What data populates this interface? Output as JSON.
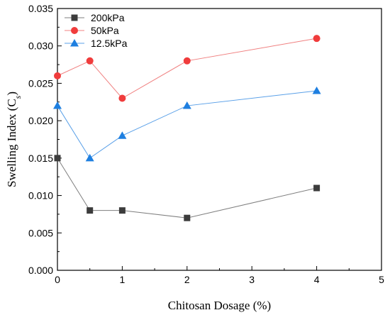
{
  "chart_data": {
    "type": "line",
    "title": "",
    "xlabel": "Chitosan Dosage (%)",
    "ylabel": "Swelling Index (C",
    "ylabel_subscript": "s",
    "ylabel_suffix": ")",
    "xlim": [
      0,
      5
    ],
    "ylim": [
      0,
      0.035
    ],
    "xticks": [
      "0",
      "1",
      "2",
      "3",
      "4",
      "5"
    ],
    "yticks": [
      "0.000",
      "0.005",
      "0.010",
      "0.015",
      "0.020",
      "0.025",
      "0.030",
      "0.035"
    ],
    "grid": false,
    "legend_position": "top-left",
    "x": [
      0,
      0.5,
      1,
      2,
      4
    ],
    "series": [
      {
        "name": "200kPa",
        "values": [
          0.015,
          0.008,
          0.008,
          0.007,
          0.011
        ],
        "color": "#3c3c3c",
        "line_color": "#7f7f7f",
        "marker": "square"
      },
      {
        "name": "50kPa",
        "values": [
          0.026,
          0.028,
          0.023,
          0.028,
          0.031
        ],
        "color": "#f03c3c",
        "line_color": "#f08080",
        "marker": "circle"
      },
      {
        "name": "12.5kPa",
        "values": [
          0.022,
          0.015,
          0.018,
          0.022,
          0.024
        ],
        "color": "#1e7fe0",
        "line_color": "#5aa0e8",
        "marker": "triangle"
      }
    ]
  }
}
